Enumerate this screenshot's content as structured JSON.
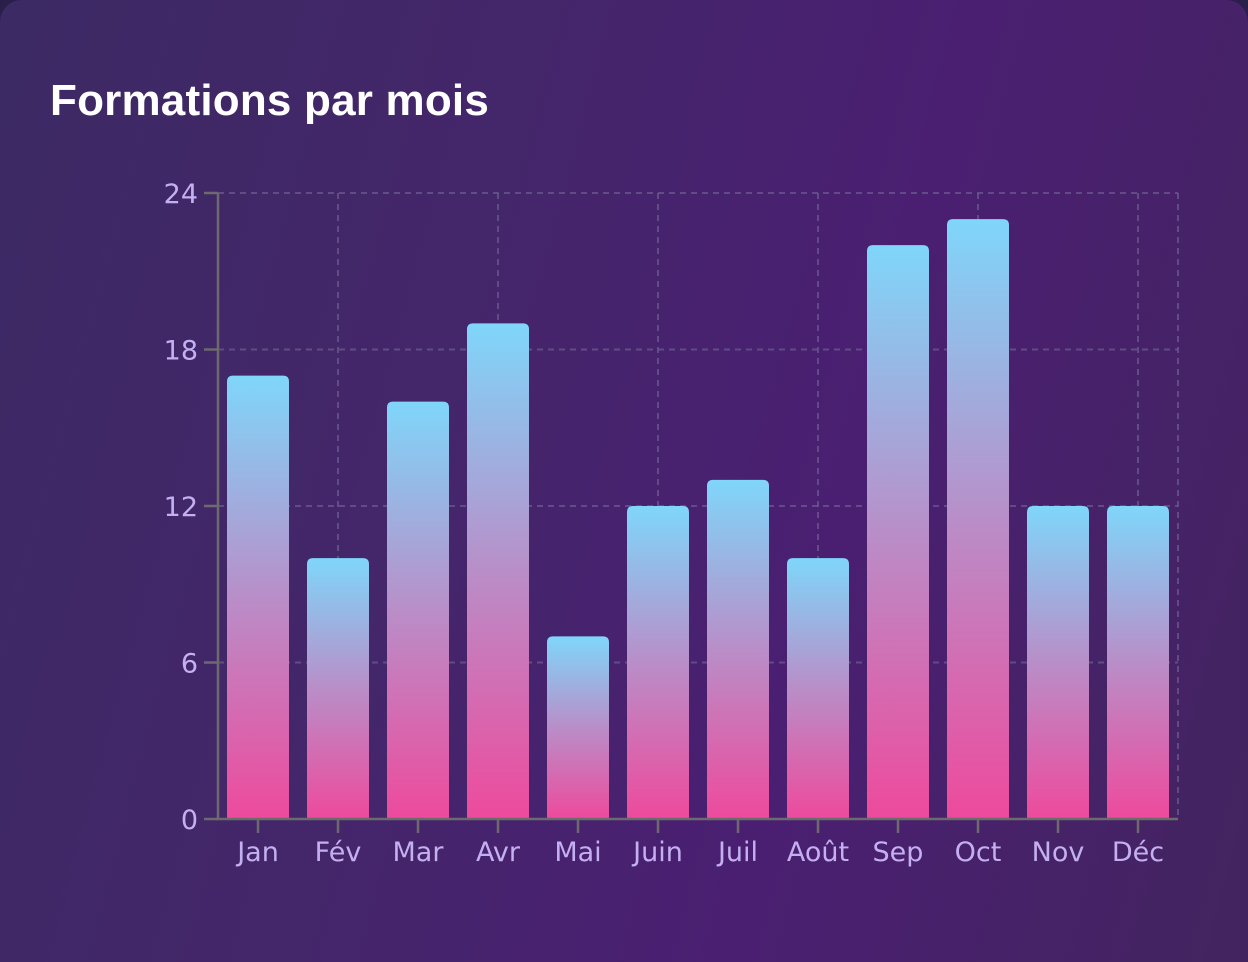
{
  "title": "Formations par mois",
  "colors": {
    "bar_top": "#7fd6fa",
    "bar_mid": "#b98ec8",
    "bar_bottom": "#ee4a9c",
    "axis": "#6c6a6c",
    "grid": "#6a5a8e",
    "tick_label": "#c4b0f0"
  },
  "chart_data": {
    "type": "bar",
    "title": "Formations par mois",
    "xlabel": "",
    "ylabel": "",
    "categories": [
      "Jan",
      "Fév",
      "Mar",
      "Avr",
      "Mai",
      "Juin",
      "Juil",
      "Août",
      "Sep",
      "Oct",
      "Nov",
      "Déc"
    ],
    "values": [
      17,
      10,
      16,
      19,
      7,
      12,
      13,
      10,
      22,
      23,
      12,
      12
    ],
    "ylim": [
      0,
      24
    ],
    "yticks": [
      0,
      6,
      12,
      18,
      24
    ],
    "grid": true,
    "legend": "none"
  }
}
